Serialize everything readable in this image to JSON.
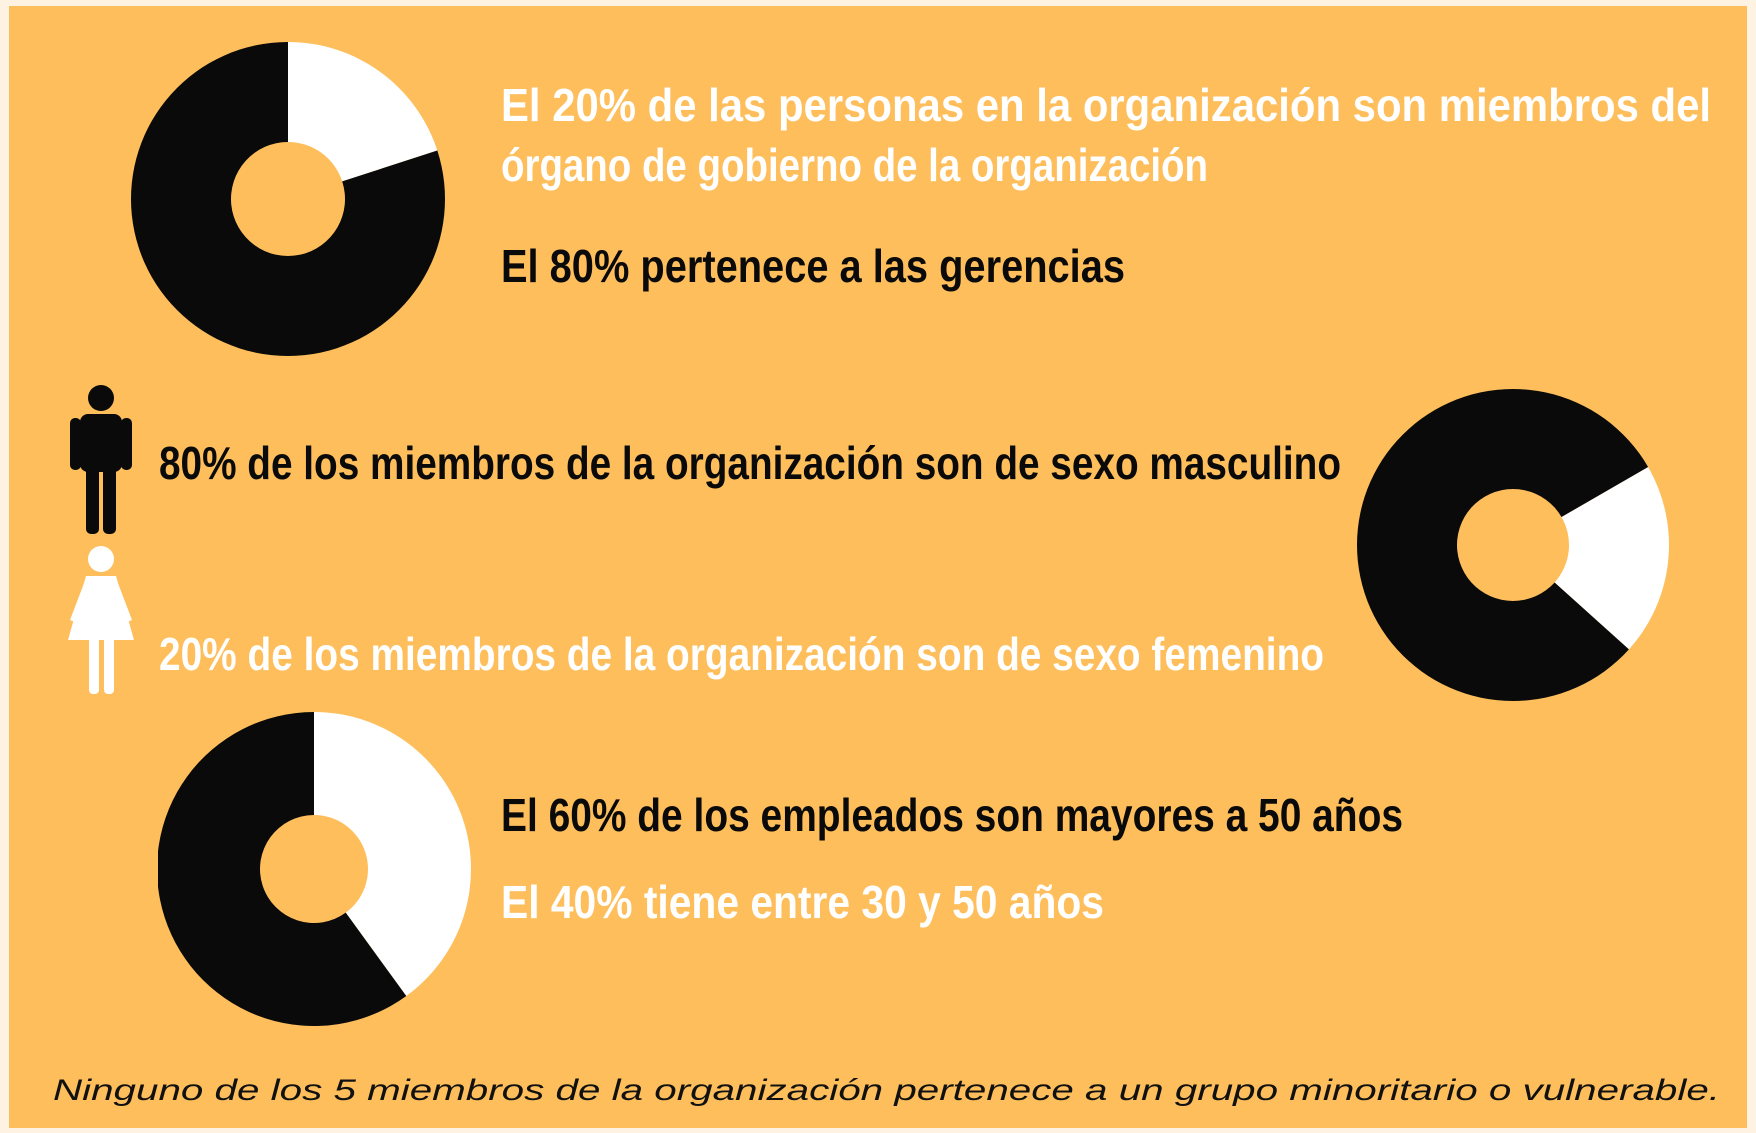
{
  "chart_data": [
    {
      "type": "pie",
      "values": [
        20,
        80
      ],
      "colors": [
        "#ffffff",
        "#0a0a0a"
      ],
      "annotations": [
        [
          "El 20% de las personas en la organización son miembros del",
          "órgano de gobierno de la organización"
        ],
        [
          "El 80% pertenece a las gerencias"
        ]
      ]
    },
    {
      "type": "pie",
      "values": [
        20,
        80
      ],
      "colors": [
        "#ffffff",
        "#0a0a0a"
      ],
      "annotations": [
        [
          "80% de los miembros de la organización son de sexo masculino"
        ],
        [
          "20% de los miembros de la organización son de sexo femenino"
        ]
      ]
    },
    {
      "type": "pie",
      "values": [
        40,
        60
      ],
      "colors": [
        "#ffffff",
        "#0a0a0a"
      ],
      "annotations": [
        [
          "El 60% de los empleados son mayores a 50 años"
        ],
        [
          "El 40% tiene entre 30 y 50 años"
        ]
      ]
    }
  ],
  "note": "Ninguno de los 5 miembros de la organización pertenece a un grupo minoritario o vulnerable."
}
